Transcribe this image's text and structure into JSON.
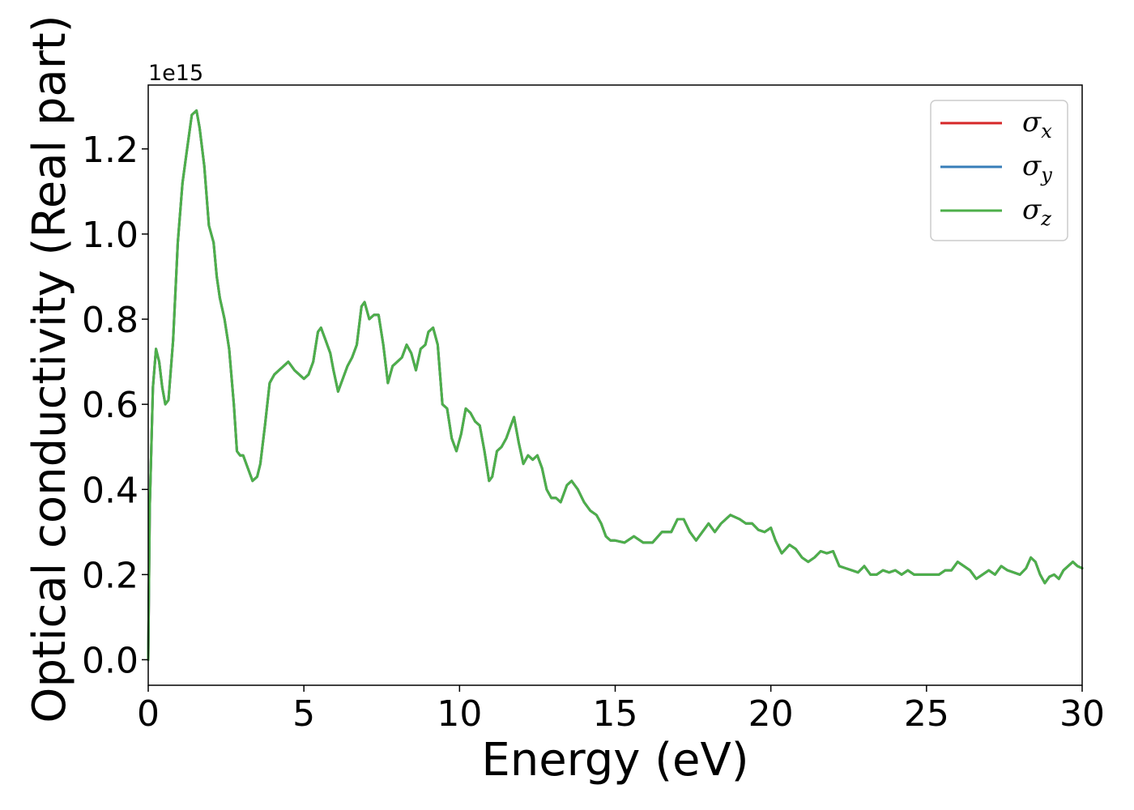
{
  "chart_data": {
    "type": "line",
    "xlabel": "Energy (eV)",
    "ylabel": "Optical conductivity (Real part)",
    "y_offset_text": "1e15",
    "y_scale": 1000000000000000.0,
    "xlim": [
      0,
      30
    ],
    "ylim": [
      -0.06,
      1.35
    ],
    "x_ticks": [
      0,
      5,
      10,
      15,
      20,
      25,
      30
    ],
    "x_tick_labels": [
      "0",
      "5",
      "10",
      "15",
      "20",
      "25",
      "30"
    ],
    "y_ticks": [
      0.0,
      0.2,
      0.4,
      0.6,
      0.8,
      1.0,
      1.2
    ],
    "y_tick_labels": [
      "0.0",
      "0.2",
      "0.4",
      "0.6",
      "0.8",
      "1.0",
      "1.2"
    ],
    "grid": false,
    "legend_position": "top-right",
    "legend": [
      {
        "symbol": "σ",
        "sub": "x",
        "color": "#d62728"
      },
      {
        "symbol": "σ",
        "sub": "y",
        "color": "#377eb8"
      },
      {
        "symbol": "σ",
        "sub": "z",
        "color": "#4daf4a"
      }
    ],
    "x": [
      0.0,
      0.05,
      0.15,
      0.25,
      0.35,
      0.45,
      0.55,
      0.65,
      0.8,
      0.95,
      1.1,
      1.25,
      1.4,
      1.55,
      1.65,
      1.8,
      1.95,
      2.1,
      2.2,
      2.3,
      2.45,
      2.6,
      2.75,
      2.85,
      2.95,
      3.05,
      3.2,
      3.35,
      3.5,
      3.6,
      3.75,
      3.9,
      4.05,
      4.2,
      4.35,
      4.5,
      4.6,
      4.7,
      4.85,
      5.0,
      5.15,
      5.3,
      5.45,
      5.55,
      5.7,
      5.85,
      5.95,
      6.1,
      6.25,
      6.4,
      6.55,
      6.7,
      6.85,
      6.95,
      7.1,
      7.25,
      7.4,
      7.55,
      7.7,
      7.85,
      8.0,
      8.15,
      8.3,
      8.45,
      8.6,
      8.75,
      8.9,
      9.0,
      9.15,
      9.3,
      9.45,
      9.6,
      9.75,
      9.9,
      10.05,
      10.2,
      10.35,
      10.5,
      10.65,
      10.8,
      10.95,
      11.05,
      11.2,
      11.35,
      11.5,
      11.65,
      11.75,
      11.9,
      12.05,
      12.2,
      12.35,
      12.5,
      12.65,
      12.8,
      12.95,
      13.1,
      13.25,
      13.45,
      13.6,
      13.8,
      14.0,
      14.2,
      14.4,
      14.55,
      14.7,
      14.85,
      15.0,
      15.3,
      15.6,
      15.9,
      16.2,
      16.5,
      16.8,
      17.0,
      17.2,
      17.4,
      17.6,
      17.8,
      18.0,
      18.2,
      18.4,
      18.7,
      19.0,
      19.2,
      19.4,
      19.6,
      19.8,
      20.0,
      20.15,
      20.35,
      20.6,
      20.8,
      21.0,
      21.2,
      21.4,
      21.6,
      21.8,
      22.0,
      22.2,
      22.4,
      22.6,
      22.8,
      23.0,
      23.2,
      23.4,
      23.6,
      23.8,
      24.0,
      24.2,
      24.4,
      24.6,
      24.8,
      25.0,
      25.2,
      25.4,
      25.6,
      25.8,
      26.0,
      26.2,
      26.4,
      26.6,
      26.8,
      27.0,
      27.2,
      27.4,
      27.6,
      27.8,
      28.0,
      28.2,
      28.35,
      28.5,
      28.65,
      28.8,
      28.95,
      29.1,
      29.25,
      29.4,
      29.55,
      29.7,
      29.85,
      30.0
    ],
    "y": [
      0.0,
      0.36,
      0.64,
      0.73,
      0.7,
      0.64,
      0.6,
      0.61,
      0.75,
      0.98,
      1.12,
      1.2,
      1.28,
      1.29,
      1.25,
      1.16,
      1.02,
      0.98,
      0.9,
      0.85,
      0.8,
      0.73,
      0.6,
      0.49,
      0.48,
      0.48,
      0.45,
      0.42,
      0.43,
      0.46,
      0.55,
      0.65,
      0.67,
      0.68,
      0.69,
      0.7,
      0.69,
      0.68,
      0.67,
      0.66,
      0.67,
      0.7,
      0.77,
      0.78,
      0.75,
      0.72,
      0.68,
      0.63,
      0.66,
      0.69,
      0.71,
      0.74,
      0.83,
      0.84,
      0.8,
      0.81,
      0.81,
      0.74,
      0.65,
      0.69,
      0.7,
      0.71,
      0.74,
      0.72,
      0.68,
      0.73,
      0.74,
      0.77,
      0.78,
      0.74,
      0.6,
      0.59,
      0.52,
      0.49,
      0.53,
      0.59,
      0.58,
      0.56,
      0.55,
      0.49,
      0.42,
      0.43,
      0.49,
      0.5,
      0.52,
      0.55,
      0.57,
      0.51,
      0.46,
      0.48,
      0.47,
      0.48,
      0.45,
      0.4,
      0.38,
      0.38,
      0.37,
      0.41,
      0.42,
      0.4,
      0.37,
      0.35,
      0.34,
      0.32,
      0.29,
      0.28,
      0.28,
      0.275,
      0.29,
      0.275,
      0.275,
      0.3,
      0.3,
      0.33,
      0.33,
      0.3,
      0.28,
      0.3,
      0.32,
      0.3,
      0.32,
      0.34,
      0.33,
      0.32,
      0.32,
      0.305,
      0.3,
      0.31,
      0.28,
      0.25,
      0.27,
      0.26,
      0.24,
      0.23,
      0.24,
      0.255,
      0.25,
      0.255,
      0.22,
      0.215,
      0.21,
      0.205,
      0.22,
      0.2,
      0.2,
      0.21,
      0.205,
      0.21,
      0.2,
      0.21,
      0.2,
      0.2,
      0.2,
      0.2,
      0.2,
      0.21,
      0.21,
      0.23,
      0.22,
      0.21,
      0.19,
      0.2,
      0.21,
      0.2,
      0.22,
      0.21,
      0.205,
      0.2,
      0.215,
      0.24,
      0.23,
      0.2,
      0.18,
      0.195,
      0.2,
      0.19,
      0.21,
      0.22,
      0.23,
      0.22,
      0.215
    ]
  }
}
